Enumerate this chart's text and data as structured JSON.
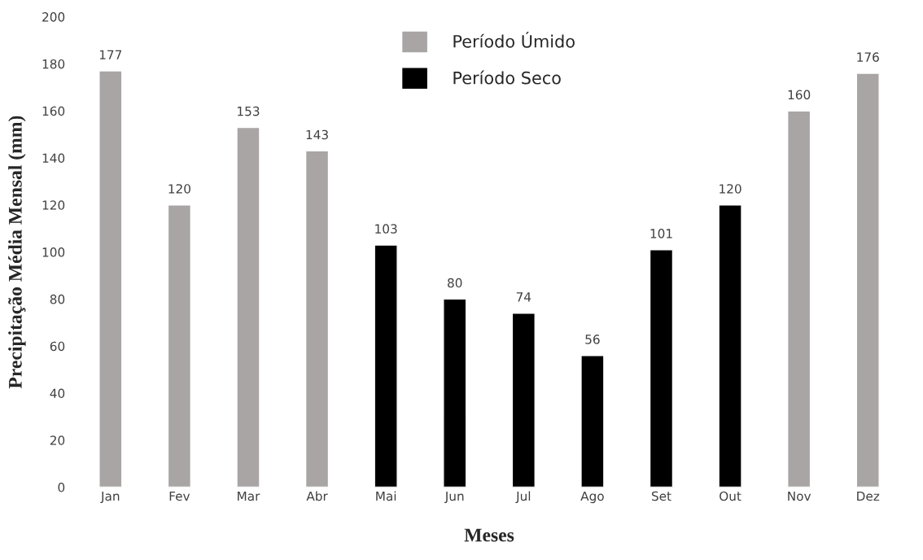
{
  "chart_data": {
    "type": "bar",
    "xlabel": "Meses",
    "ylabel": "Precipitação Média Mensal (mm)",
    "categories": [
      "Jan",
      "Fev",
      "Mar",
      "Abr",
      "Mai",
      "Jun",
      "Jul",
      "Ago",
      "Set",
      "Out",
      "Nov",
      "Dez"
    ],
    "series": [
      {
        "name": "Período Úmido",
        "color": "#a9a5a5",
        "values": [
          177,
          120,
          153,
          143,
          null,
          null,
          null,
          null,
          null,
          null,
          160,
          176
        ]
      },
      {
        "name": "Período Seco",
        "color": "#000000",
        "values": [
          null,
          null,
          null,
          null,
          103,
          80,
          74,
          56,
          101,
          120,
          null,
          null
        ]
      }
    ],
    "ylim": [
      0,
      200
    ],
    "yticks": [
      0,
      20,
      40,
      60,
      80,
      100,
      120,
      140,
      160,
      180,
      200
    ],
    "data_labels": true,
    "legend": "top",
    "grid": false
  }
}
